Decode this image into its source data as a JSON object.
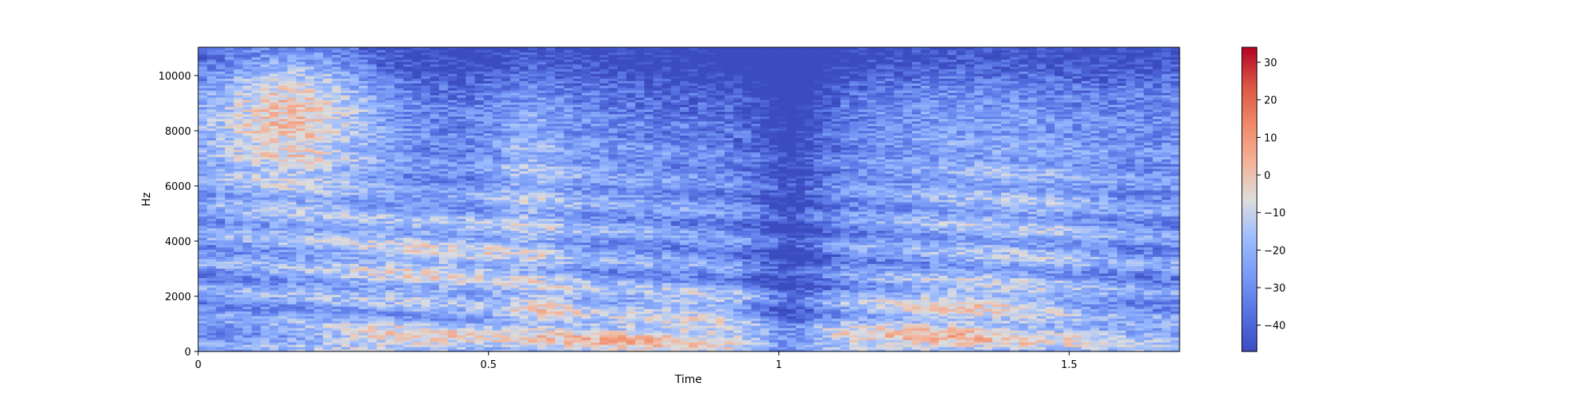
{
  "chart_data": {
    "type": "heatmap",
    "title": "",
    "xlabel": "Time",
    "ylabel": "Hz",
    "xlim": [
      0,
      1.69
    ],
    "ylim": [
      0,
      11025
    ],
    "xticks": [
      0,
      0.5,
      1,
      1.5
    ],
    "xtick_labels": [
      "0",
      "0.5",
      "1",
      "1.5"
    ],
    "yticks": [
      0,
      2000,
      4000,
      6000,
      8000,
      10000
    ],
    "ytick_labels": [
      "0",
      "2000",
      "4000",
      "6000",
      "8000",
      "10000"
    ],
    "colormap": "coolwarm",
    "colors": {
      "low": "#3b4cc0",
      "mid": "#dddddd",
      "high": "#b40426"
    },
    "colorbar": {
      "range": [
        -47,
        34
      ],
      "ticks": [
        30,
        20,
        10,
        0,
        -10,
        -20,
        -30,
        -40
      ],
      "tick_labels": [
        "30",
        "20",
        "10",
        "0",
        "−10",
        "−20",
        "−30",
        "−40"
      ]
    },
    "grid": false,
    "legend": "none"
  }
}
